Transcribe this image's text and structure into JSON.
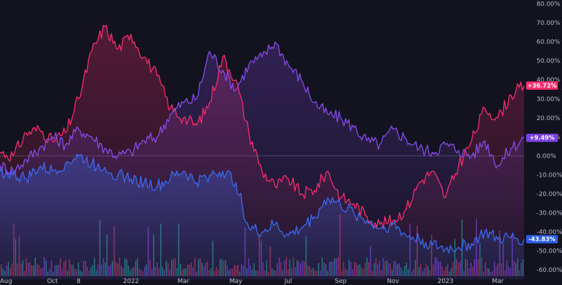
{
  "chart_data": {
    "type": "line",
    "y_axis": {
      "position": "right",
      "unit": "%",
      "ylim": [
        -65,
        82
      ],
      "ticks": [
        "80.00%",
        "70.00%",
        "60.00%",
        "50.00%",
        "40.00%",
        "30.00%",
        "20.00%",
        "10.00%",
        "0.00%",
        "-10.00%",
        "-20.00%",
        "-30.00%",
        "-40.00%",
        "-50.00%",
        "-60.00%"
      ],
      "tick_values": [
        80,
        70,
        60,
        50,
        40,
        30,
        20,
        10,
        0,
        -10,
        -20,
        -30,
        -40,
        -50,
        -60
      ]
    },
    "x_axis": {
      "tick_labels": [
        "Aug",
        "Oct",
        "8",
        "2022",
        "Mar",
        "May",
        "Jul",
        "Sep",
        "Nov",
        "2023",
        "Mar"
      ],
      "tick_positions": [
        0,
        2,
        3,
        5,
        7,
        9,
        11,
        13,
        15,
        17,
        19
      ],
      "xlim": [
        0,
        20
      ]
    },
    "zero_line": true,
    "series": [
      {
        "color": "#ff2d6e",
        "last_value_label": "+36.72%",
        "badge_color": "#ff2d6e",
        "x": [
          0,
          0.5,
          1,
          1.5,
          2,
          2.5,
          3,
          3.5,
          4,
          4.5,
          5,
          5.5,
          6,
          6.5,
          7,
          7.5,
          8,
          8.5,
          9,
          9.5,
          10,
          10.5,
          11,
          11.5,
          12,
          12.5,
          13,
          13.5,
          14,
          14.5,
          15,
          15.5,
          16,
          16.5,
          17,
          17.5,
          18,
          18.5,
          19,
          19.5,
          20
        ],
        "y": [
          2,
          0,
          12,
          14,
          8,
          12,
          30,
          55,
          68,
          56,
          64,
          52,
          42,
          25,
          20,
          16,
          28,
          52,
          40,
          12,
          -8,
          -16,
          -12,
          -20,
          -18,
          -8,
          -22,
          -25,
          -32,
          -36,
          -34,
          -28,
          -14,
          -8,
          -22,
          -5,
          8,
          25,
          20,
          32,
          37
        ]
      },
      {
        "color": "#8a4cf0",
        "last_value_label": "+9.49%",
        "badge_color": "#7b3fe4",
        "x": [
          0,
          0.5,
          1,
          1.5,
          2,
          2.5,
          3,
          3.5,
          4,
          4.5,
          5,
          5.5,
          6,
          6.5,
          7,
          7.5,
          8,
          8.5,
          9,
          9.5,
          10,
          10.5,
          11,
          11.5,
          12,
          12.5,
          13,
          13.5,
          14,
          14.5,
          15,
          15.5,
          16,
          16.5,
          17,
          17.5,
          18,
          18.5,
          19,
          19.5,
          20
        ],
        "y": [
          -5,
          -8,
          -2,
          4,
          10,
          6,
          14,
          10,
          4,
          0,
          2,
          8,
          10,
          22,
          28,
          30,
          55,
          45,
          35,
          48,
          52,
          60,
          48,
          40,
          28,
          22,
          20,
          15,
          8,
          6,
          14,
          9,
          4,
          2,
          6,
          3,
          0,
          8,
          -5,
          4,
          9.5
        ]
      },
      {
        "color": "#3a6cf5",
        "last_value_label": "-43.83%",
        "badge_color": "#2a5ee8",
        "x": [
          0,
          0.5,
          1,
          1.5,
          2,
          2.5,
          3,
          3.5,
          4,
          4.5,
          5,
          5.5,
          6,
          6.5,
          7,
          7.5,
          8,
          8.5,
          9,
          9.5,
          10,
          10.5,
          11,
          11.5,
          12,
          12.5,
          13,
          13.5,
          14,
          14.5,
          15,
          15.5,
          16,
          16.5,
          17,
          17.5,
          18,
          18.5,
          19,
          19.5,
          20
        ],
        "y": [
          -8,
          -10,
          -12,
          -6,
          -8,
          -4,
          0,
          -4,
          -6,
          -10,
          -12,
          -14,
          -16,
          -12,
          -8,
          -14,
          -10,
          -8,
          -14,
          -38,
          -40,
          -36,
          -42,
          -38,
          -32,
          -22,
          -26,
          -30,
          -34,
          -38,
          -36,
          -42,
          -44,
          -47,
          -49,
          -48,
          -46,
          -40,
          -44,
          -43,
          -43.8
        ]
      }
    ],
    "volume_bars": true
  }
}
